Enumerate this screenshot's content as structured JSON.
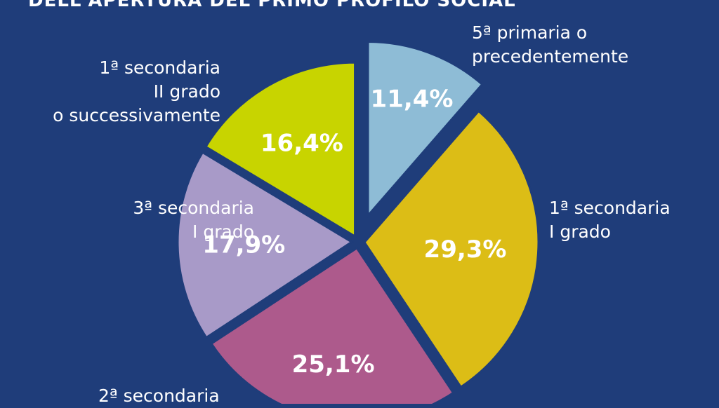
{
  "title": "DELL'APERTURA DEL PRIMO PROFILO SOCIAL",
  "colors": {
    "background": "#1f3d7a",
    "slice_primaria": "#8ebcd6",
    "slice_1_sec_I": "#dcbd16",
    "slice_2_sec_I": "#ad5a8c",
    "slice_3_sec_I": "#a89ac8",
    "slice_1_sec_II": "#c8d400"
  },
  "chart_data": {
    "type": "pie",
    "title": "DELL'APERTURA DEL PRIMO PROFILO SOCIAL",
    "slices": [
      {
        "label_lines": [
          "5ª primaria o",
          "precedentemente"
        ],
        "value": 11.4,
        "display": "11,4%",
        "color_key": "slice_primaria",
        "exploded": true
      },
      {
        "label_lines": [
          "1ª secondaria",
          "I grado"
        ],
        "value": 29.3,
        "display": "29,3%",
        "color_key": "slice_1_sec_I",
        "exploded": false
      },
      {
        "label_lines": [
          "2ª secondaria"
        ],
        "value": 25.1,
        "display": "25,1%",
        "color_key": "slice_2_sec_I",
        "exploded": false
      },
      {
        "label_lines": [
          "3ª secondaria",
          "I grado"
        ],
        "value": 17.9,
        "display": "17,9%",
        "color_key": "slice_3_sec_I",
        "exploded": false
      },
      {
        "label_lines": [
          "1ª secondaria",
          "II grado",
          "o successivamente"
        ],
        "value": 16.4,
        "display": "16,4%",
        "color_key": "slice_1_sec_II",
        "exploded": false
      }
    ]
  }
}
